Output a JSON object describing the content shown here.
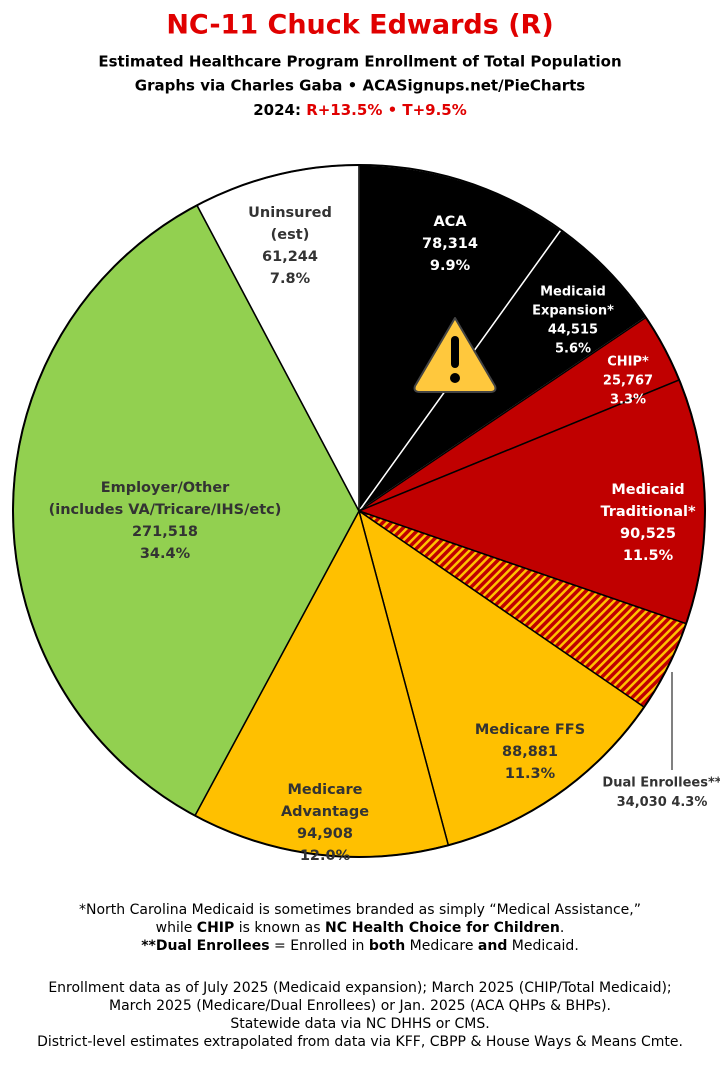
{
  "chart_data": {
    "type": "pie",
    "title": "NC-11 Chuck Edwards (R)",
    "subtitle": [
      "Estimated Healthcare Program Enrollment of Total Population",
      "Graphs via Charles Gaba  •  ACASignups.net/PieCharts",
      "2024:",
      "R+13.5%  •  T+9.5%"
    ],
    "categories": [
      [
        "ACA"
      ],
      [
        "Medicaid",
        "Expansion*"
      ],
      [
        "CHIP*"
      ],
      [
        "Medicaid",
        "Traditional*"
      ],
      [
        "Dual Enrollees**"
      ],
      [
        "Medicare FFS"
      ],
      [
        "Medicare",
        "Advantage"
      ],
      [
        "Employer/Other",
        "(includes VA/Tricare/IHS/etc)"
      ],
      [
        "Uninsured",
        "(est)"
      ]
    ],
    "values": [
      78314,
      44515,
      25767,
      90525,
      34030,
      88881,
      94908,
      271518,
      61244
    ],
    "value_labels": [
      "78,314",
      "44,515",
      "25,767",
      "90,525",
      "34,030",
      "88,881",
      "94,908",
      "271,518",
      "61,244"
    ],
    "percent_labels": [
      "9.9%",
      "5.6%",
      "3.3%",
      "11.5%",
      "4.3%",
      "11.3%",
      "12.0%",
      "34.4%",
      "7.8%"
    ],
    "colors": [
      "#000000",
      "#000000",
      "#c00000",
      "#c00000",
      "#c00000",
      "#ffc000",
      "#ffc000",
      "#92d050",
      "#ffffff"
    ],
    "hatched": [
      false,
      false,
      false,
      false,
      true,
      false,
      false,
      false,
      false
    ]
  },
  "notes": [
    [
      "*North Carolina Medicaid is sometimes branded as simply “Medical Assistance,”"
    ],
    [
      "while ",
      "CHIP",
      " is known as ",
      "NC Health Choice for Children",
      "."
    ],
    [
      "**Dual Enrollees",
      " = Enrolled in ",
      "both",
      " Medicare ",
      "and",
      " Medicaid."
    ],
    [
      "Enrollment data as of July 2025 (Medicaid expansion); March 2025 (CHIP/Total Medicaid);"
    ],
    [
      "March 2025 (Medicare/Dual Enrollees) or Jan. 2025 (ACA QHPs & BHPs)."
    ],
    [
      "Statewide data via NC DHHS or CMS."
    ],
    [
      "District-level estimates extrapolated from data via KFF, CBPP & House Ways & Means Cmte."
    ]
  ]
}
